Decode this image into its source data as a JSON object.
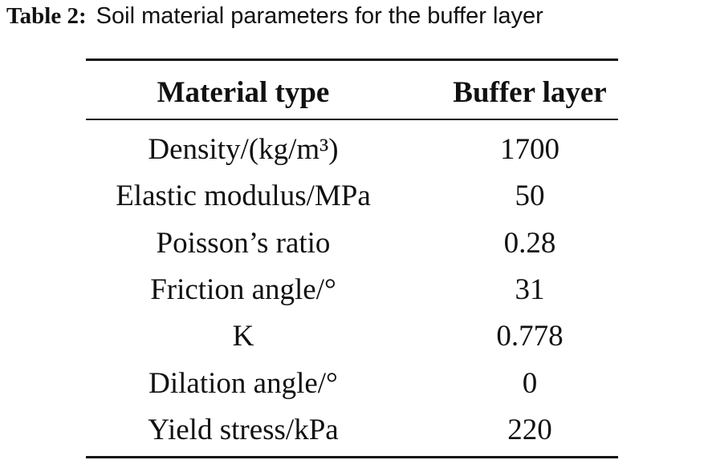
{
  "caption": {
    "label": "Table 2:",
    "text": "Soil material parameters for the buffer layer"
  },
  "table": {
    "header": [
      "Material type",
      "Buffer layer"
    ],
    "rows": [
      [
        "Density/(kg/m³)",
        1700
      ],
      [
        "Elastic modulus/MPa",
        50
      ],
      [
        "Poisson’s ratio",
        0.28
      ],
      [
        "Friction angle/°",
        31
      ],
      [
        "K",
        0.778
      ],
      [
        "Dilation angle/°",
        0
      ],
      [
        "Yield stress/kPa",
        220
      ]
    ]
  }
}
